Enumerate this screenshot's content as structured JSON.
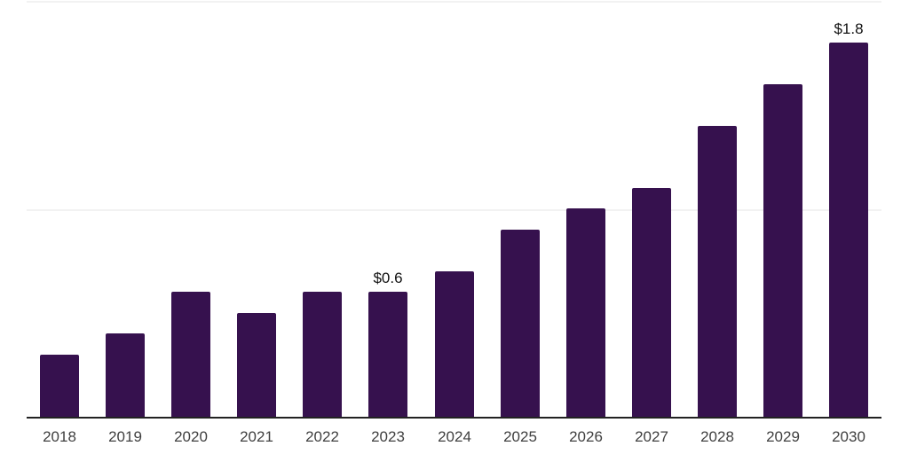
{
  "chart_data": {
    "type": "bar",
    "title": "",
    "xlabel": "",
    "ylabel": "",
    "categories": [
      "2018",
      "2019",
      "2020",
      "2021",
      "2022",
      "2023",
      "2024",
      "2025",
      "2026",
      "2027",
      "2028",
      "2029",
      "2030"
    ],
    "values": [
      0.3,
      0.4,
      0.6,
      0.5,
      0.6,
      0.6,
      0.7,
      0.9,
      1.0,
      1.1,
      1.4,
      1.6,
      1.8
    ],
    "data_labels": {
      "2023": "$0.6",
      "2030": "$1.8"
    },
    "ylim": [
      0,
      2.0
    ],
    "gridlines_y": [
      1.0,
      2.0
    ],
    "grid": "horizontal-only",
    "legend": "none",
    "colors": {
      "bar": "#36114E",
      "axis_line": "#222222",
      "gridline": "#f2f2f2",
      "tick_label": "#404040",
      "data_label": "#111111",
      "background": "#ffffff"
    }
  }
}
